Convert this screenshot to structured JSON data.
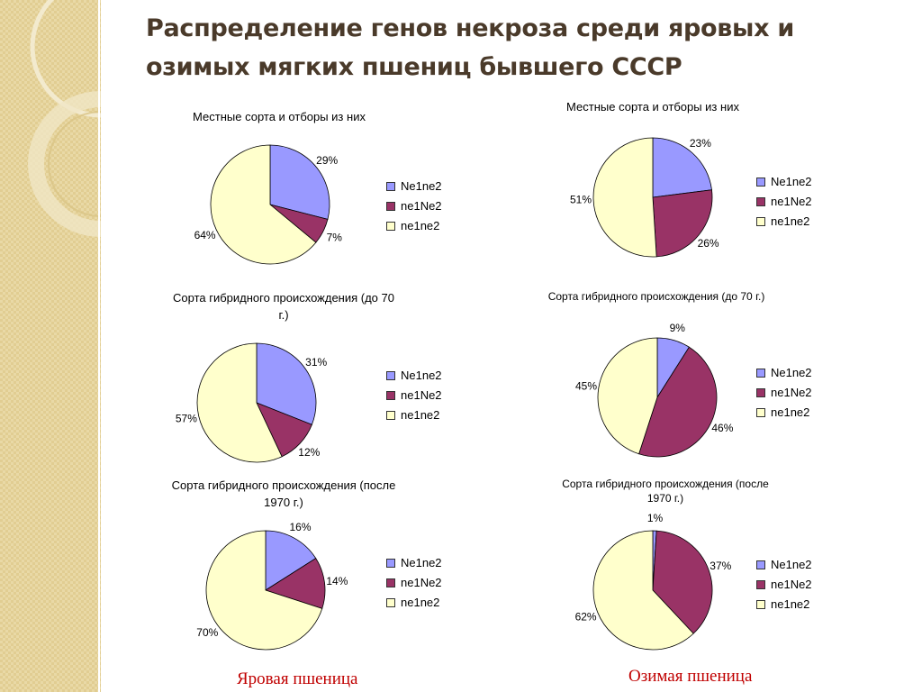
{
  "title": "Распределение генов некроза среди яровых и озимых мягких пшениц бывшего СССР",
  "colors": {
    "Ne1ne2": "#9999ff",
    "ne1Ne2": "#993366",
    "ne1ne2": "#ffffcc"
  },
  "captions": {
    "left": "Яровая пшеница",
    "right": "Озимая пшеница"
  },
  "chart_data": [
    {
      "type": "pie",
      "title": "Местные сорта и отборы из них",
      "labels": [
        "Ne1ne2",
        "ne1Ne2",
        "ne1ne2"
      ],
      "values": [
        29,
        7,
        64
      ],
      "data_labels": [
        "29%",
        "7%",
        "64%"
      ],
      "legend": "right"
    },
    {
      "type": "pie",
      "title": "Местные сорта и отборы из них",
      "labels": [
        "Ne1ne2",
        "ne1Ne2",
        "ne1ne2"
      ],
      "values": [
        23,
        26,
        51
      ],
      "data_labels": [
        "23%",
        "26%",
        "51%"
      ],
      "legend": "right"
    },
    {
      "type": "pie",
      "title": "Сорта гибридного происхождения (до 70 г.)",
      "labels": [
        "Ne1ne2",
        "ne1Ne2",
        "ne1ne2"
      ],
      "values": [
        31,
        12,
        57
      ],
      "data_labels": [
        "31%",
        "12%",
        "57%"
      ],
      "legend": "right"
    },
    {
      "type": "pie",
      "title": "Сорта гибридного происхождения (до 70 г.)",
      "labels": [
        "Ne1ne2",
        "ne1Ne2",
        "ne1ne2"
      ],
      "values": [
        9,
        46,
        45
      ],
      "data_labels": [
        "9%",
        "46%",
        "45%"
      ],
      "legend": "right"
    },
    {
      "type": "pie",
      "title": "Сорта гибридного происхождения (после 1970 г.)",
      "labels": [
        "Ne1ne2",
        "ne1Ne2",
        "ne1ne2"
      ],
      "values": [
        16,
        14,
        70
      ],
      "data_labels": [
        "16%",
        "14%",
        "70%"
      ],
      "legend": "right"
    },
    {
      "type": "pie",
      "title": "Сорта гибридного происхождения (после 1970 г.)",
      "labels": [
        "Ne1ne2",
        "ne1Ne2",
        "ne1ne2"
      ],
      "values": [
        1,
        37,
        62
      ],
      "data_labels": [
        "1%",
        "37%",
        "62%"
      ],
      "legend": "right"
    }
  ]
}
